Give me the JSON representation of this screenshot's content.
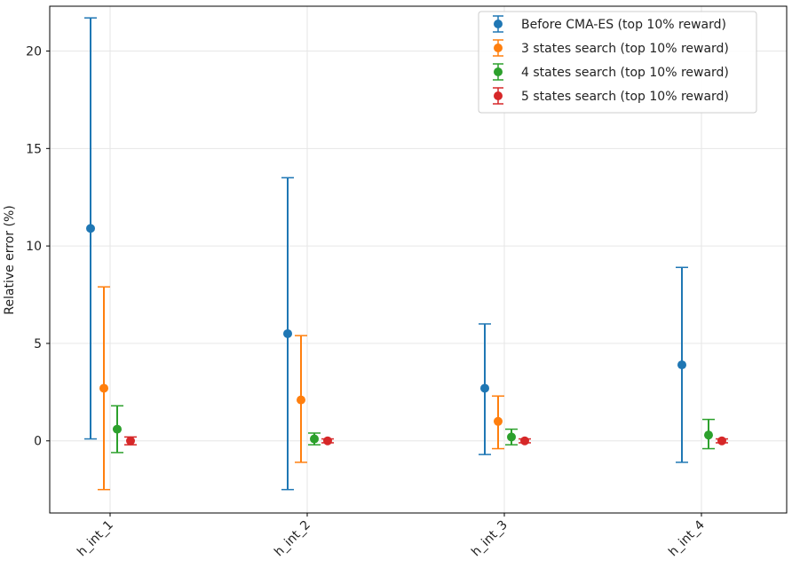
{
  "chart_data": {
    "type": "scatter",
    "title": "",
    "xlabel": "",
    "ylabel": "Relative error (%)",
    "categories": [
      "h_int_1",
      "h_int_2",
      "h_int_3",
      "h_int_4"
    ],
    "ylim": [
      -3.7,
      22.3
    ],
    "yticks": [
      0,
      5,
      10,
      15,
      20
    ],
    "grid": true,
    "legend_position": "top-right",
    "series": [
      {
        "name": "Before CMA-ES (top 10% reward)",
        "color": "#1f77b4",
        "points": [
          {
            "category": "h_int_1",
            "value": 10.9,
            "lower": 0.1,
            "upper": 21.7
          },
          {
            "category": "h_int_2",
            "value": 5.5,
            "lower": -2.5,
            "upper": 13.5
          },
          {
            "category": "h_int_3",
            "value": 2.7,
            "lower": -0.7,
            "upper": 6.0
          },
          {
            "category": "h_int_4",
            "value": 3.9,
            "lower": -1.1,
            "upper": 8.9
          }
        ]
      },
      {
        "name": "3 states search (top 10% reward)",
        "color": "#ff7f0e",
        "points": [
          {
            "category": "h_int_1",
            "value": 2.7,
            "lower": -2.5,
            "upper": 7.9
          },
          {
            "category": "h_int_2",
            "value": 2.1,
            "lower": -1.1,
            "upper": 5.4
          },
          {
            "category": "h_int_3",
            "value": 1.0,
            "lower": -0.4,
            "upper": 2.3
          }
        ]
      },
      {
        "name": "4 states search (top 10% reward)",
        "color": "#2ca02c",
        "points": [
          {
            "category": "h_int_1",
            "value": 0.6,
            "lower": -0.6,
            "upper": 1.8
          },
          {
            "category": "h_int_2",
            "value": 0.1,
            "lower": -0.2,
            "upper": 0.4
          },
          {
            "category": "h_int_3",
            "value": 0.2,
            "lower": -0.2,
            "upper": 0.6
          },
          {
            "category": "h_int_4",
            "value": 0.3,
            "lower": -0.4,
            "upper": 1.1
          }
        ]
      },
      {
        "name": "5 states search (top 10% reward)",
        "color": "#d62728",
        "points": [
          {
            "category": "h_int_1",
            "value": 0.0,
            "lower": -0.2,
            "upper": 0.2
          },
          {
            "category": "h_int_2",
            "value": 0.0,
            "lower": -0.1,
            "upper": 0.1
          },
          {
            "category": "h_int_3",
            "value": 0.0,
            "lower": -0.1,
            "upper": 0.1
          },
          {
            "category": "h_int_4",
            "value": 0.0,
            "lower": -0.1,
            "upper": 0.1
          }
        ]
      }
    ]
  }
}
